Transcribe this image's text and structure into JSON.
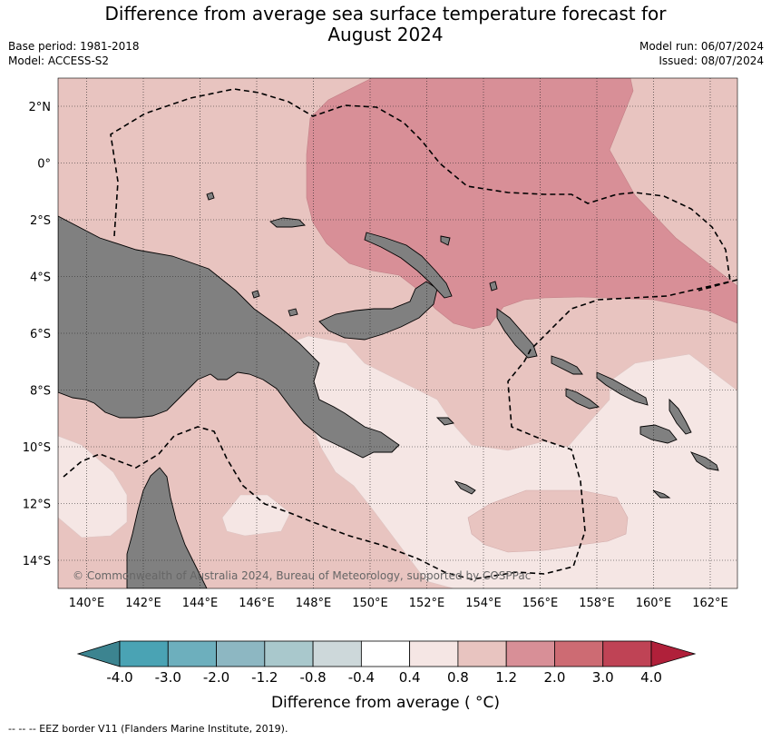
{
  "header": {
    "title_line1": "Difference from average sea surface temperature forecast for",
    "title_line2": "August 2024",
    "base_period": "Base period: 1981-2018",
    "model": "Model: ACCESS-S2",
    "model_run": "Model run: 06/07/2024",
    "issued": "Issued: 08/07/2024"
  },
  "map": {
    "copyright": "© Commonwealth of Australia 2024, Bureau of Meteorology, supported by COSPPac",
    "lon_ticks": [
      "140°E",
      "142°E",
      "144°E",
      "146°E",
      "148°E",
      "150°E",
      "152°E",
      "154°E",
      "156°E",
      "158°E",
      "160°E",
      "162°E"
    ],
    "lat_ticks": [
      "2°N",
      "0°",
      "2°S",
      "4°S",
      "6°S",
      "8°S",
      "10°S",
      "12°S",
      "14°S"
    ],
    "land_color": "#808080",
    "eez_style": "dashed"
  },
  "colorbar": {
    "ticks": [
      "-4.0",
      "-3.0",
      "-2.0",
      "-1.2",
      "-0.8",
      "-0.4",
      "0.4",
      "0.8",
      "1.2",
      "2.0",
      "3.0",
      "4.0"
    ],
    "colors": [
      "#3c8490",
      "#4aa3b4",
      "#6dafbd",
      "#8db7c2",
      "#a9c8cc",
      "#cdd8da",
      "#ffffff",
      "#f5e6e4",
      "#e8c4c0",
      "#d88f97",
      "#cd6b73",
      "#bf4355",
      "#b0203a"
    ],
    "label": "Difference from average ( °C)"
  },
  "footnote": "-- -- -- EEZ border V11 (Flanders Marine Institute, 2019)."
}
